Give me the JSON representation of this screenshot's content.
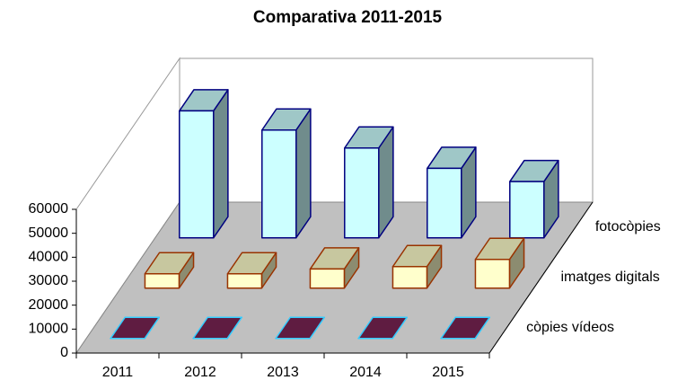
{
  "chart_data": {
    "type": "bar3d",
    "title": "Comparativa 2011-2015",
    "categories": [
      "2011",
      "2012",
      "2013",
      "2014",
      "2015"
    ],
    "series": [
      {
        "name": "còpies vídeos",
        "color": "#7a2453",
        "edge": "#33ccff",
        "values": [
          0,
          0,
          0,
          0,
          0
        ]
      },
      {
        "name": "imatges digitals",
        "color": "#ffffcc",
        "edge": "#993300",
        "values": [
          6000,
          6000,
          8000,
          9000,
          12000
        ]
      },
      {
        "name": "fotocòpies",
        "color": "#ccffff",
        "edge": "#000080",
        "values": [
          53000,
          45000,
          37500,
          29000,
          23500
        ]
      }
    ],
    "ylim": [
      0,
      60000
    ],
    "yticks": [
      0,
      10000,
      20000,
      30000,
      40000,
      50000,
      60000
    ]
  }
}
